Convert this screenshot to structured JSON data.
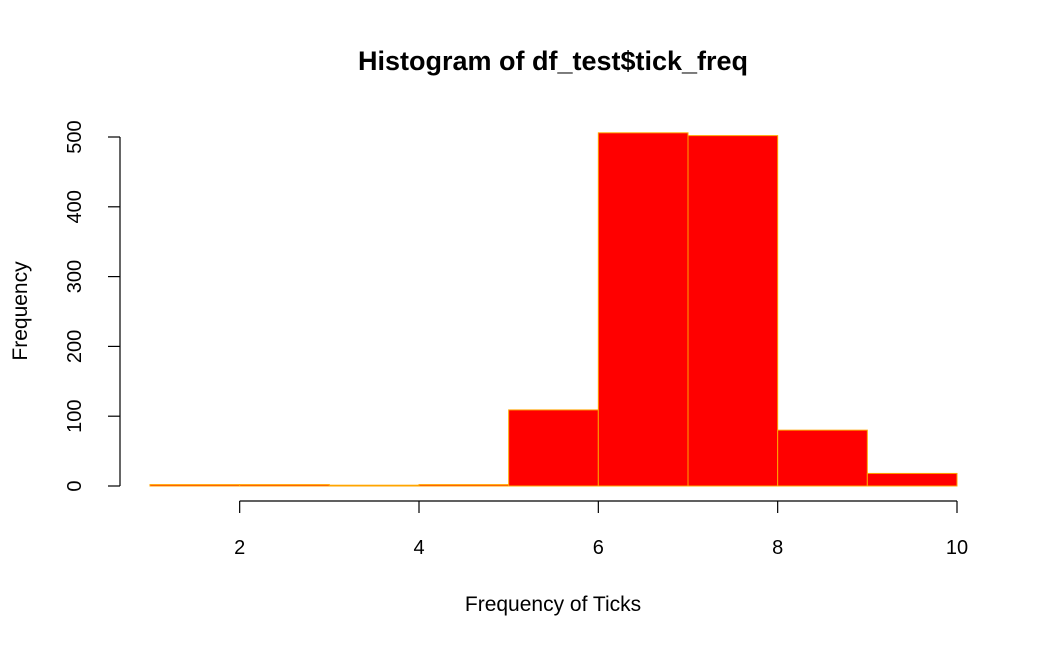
{
  "chart_data": {
    "type": "bar",
    "title": "Histogram of df_test$tick_freq",
    "xlabel": "Frequency of Ticks",
    "ylabel": "Frequency",
    "bins": [
      [
        1,
        2
      ],
      [
        2,
        3
      ],
      [
        3,
        4
      ],
      [
        4,
        5
      ],
      [
        5,
        6
      ],
      [
        6,
        7
      ],
      [
        7,
        8
      ],
      [
        8,
        9
      ],
      [
        9,
        10
      ]
    ],
    "values": [
      2,
      2,
      0,
      2,
      109,
      506,
      502,
      80,
      18
    ],
    "xlim": [
      1,
      10
    ],
    "ylim": [
      0,
      500
    ],
    "xticks": [
      2,
      4,
      6,
      8,
      10
    ],
    "yticks": [
      0,
      100,
      200,
      300,
      400,
      500
    ],
    "fill_color": "#FF0000",
    "border_color": "#FFA500",
    "grid": false
  }
}
